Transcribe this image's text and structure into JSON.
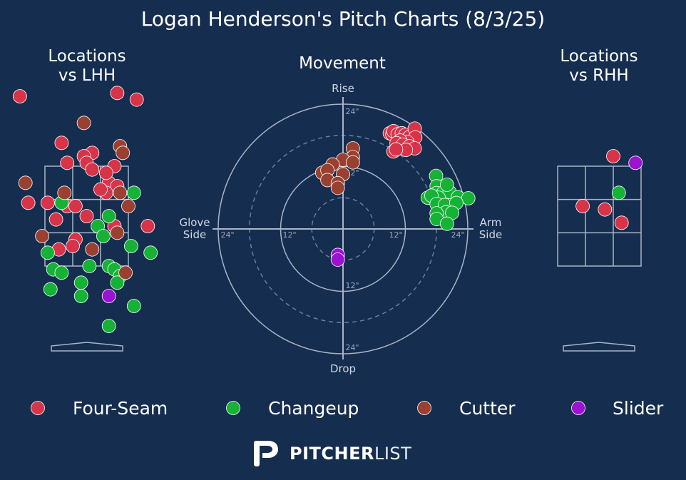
{
  "title": "Logan Henderson's Pitch Charts (8/3/25)",
  "panels": {
    "lhh": [
      "Locations",
      "vs LHH"
    ],
    "movement": "Movement",
    "rhh": [
      "Locations",
      "vs RHH"
    ]
  },
  "movement_labels": {
    "top": "Rise",
    "bottom": "Drop",
    "left": [
      "Glove",
      "Side"
    ],
    "right": [
      "Arm",
      "Side"
    ]
  },
  "ring_labels": [
    "24\"",
    "12\""
  ],
  "legend": [
    {
      "name": "Four-Seam",
      "color": "#d7344a"
    },
    {
      "name": "Changeup",
      "color": "#16b236"
    },
    {
      "name": "Cutter",
      "color": "#9a4030"
    },
    {
      "name": "Slider",
      "color": "#9a12d2"
    }
  ],
  "brand": {
    "bold": "PITCHER",
    "light": "LIST"
  },
  "chart_data": [
    {
      "type": "scatter",
      "title": "Locations vs LHH",
      "units": "strike-zone grid (x: 0-3 inside zone width, y: 0-3 inside zone height)",
      "series": [
        {
          "name": "Four-Seam",
          "points": [
            [
              -0.9,
              5.1
            ],
            [
              2.6,
              5.2
            ],
            [
              3.3,
              5.0
            ],
            [
              1.7,
              3.4
            ],
            [
              0.6,
              3.7
            ],
            [
              0.8,
              3.1
            ],
            [
              1.4,
              3.3
            ],
            [
              1.5,
              3.1
            ],
            [
              1.7,
              2.9
            ],
            [
              2.5,
              3.0
            ],
            [
              2.3,
              2.5
            ],
            [
              2.6,
              2.4
            ],
            [
              2.2,
              2.2
            ],
            [
              2.0,
              2.3
            ],
            [
              2.2,
              2.8
            ],
            [
              -0.6,
              1.9
            ],
            [
              0.1,
              1.9
            ],
            [
              0.8,
              1.8
            ],
            [
              1.1,
              1.8
            ],
            [
              1.5,
              1.5
            ],
            [
              0.4,
              1.4
            ],
            [
              2.5,
              1.2
            ],
            [
              3.7,
              1.2
            ],
            [
              1.1,
              0.8
            ],
            [
              0.5,
              0.5
            ],
            [
              1.0,
              0.6
            ]
          ]
        },
        {
          "name": "Changeup",
          "points": [
            [
              3.2,
              2.2
            ],
            [
              0.6,
              1.9
            ],
            [
              2.3,
              1.5
            ],
            [
              1.9,
              1.2
            ],
            [
              2.1,
              0.9
            ],
            [
              3.1,
              0.6
            ],
            [
              3.8,
              0.4
            ],
            [
              0.1,
              0.4
            ],
            [
              1.6,
              0.0
            ],
            [
              2.3,
              0.0
            ],
            [
              2.5,
              -0.1
            ],
            [
              2.7,
              -0.3
            ],
            [
              0.3,
              -0.1
            ],
            [
              0.6,
              -0.2
            ],
            [
              1.3,
              -0.5
            ],
            [
              2.6,
              -0.5
            ],
            [
              0.2,
              -0.7
            ],
            [
              1.3,
              -0.9
            ],
            [
              3.2,
              -1.2
            ],
            [
              2.3,
              -1.8
            ]
          ]
        },
        {
          "name": "Cutter",
          "points": [
            [
              1.4,
              4.3
            ],
            [
              2.7,
              3.6
            ],
            [
              2.8,
              3.4
            ],
            [
              -0.7,
              2.5
            ],
            [
              0.7,
              2.2
            ],
            [
              2.7,
              2.2
            ],
            [
              3.0,
              1.8
            ],
            [
              -0.1,
              0.9
            ],
            [
              2.6,
              1.0
            ],
            [
              1.7,
              0.5
            ],
            [
              2.9,
              -0.2
            ]
          ]
        },
        {
          "name": "Slider",
          "points": [
            [
              2.3,
              -0.9
            ]
          ]
        }
      ]
    },
    {
      "type": "scatter",
      "title": "Movement",
      "units": "inches (horizontal break, induced vertical break)",
      "xlim": [
        -24,
        24
      ],
      "ylim": [
        -24,
        24
      ],
      "series": [
        {
          "name": "Four-Seam",
          "points": [
            [
              9.0,
              18.4
            ],
            [
              9.5,
              18.2
            ],
            [
              9.7,
              18.8
            ],
            [
              10.5,
              18.2
            ],
            [
              11.3,
              18.4
            ],
            [
              12.0,
              18.1
            ],
            [
              12.8,
              17.7
            ],
            [
              13.8,
              19.3
            ],
            [
              13.9,
              17.6
            ],
            [
              12.4,
              16.7
            ],
            [
              11.0,
              17.0
            ],
            [
              10.3,
              16.5
            ],
            [
              11.5,
              16.2
            ],
            [
              12.8,
              15.9
            ],
            [
              13.8,
              15.5
            ],
            [
              12.1,
              15.2
            ],
            [
              9.7,
              14.9
            ],
            [
              10.2,
              15.3
            ]
          ]
        },
        {
          "name": "Changeup",
          "points": [
            [
              17.9,
              10.2
            ],
            [
              18.0,
              8.2
            ],
            [
              18.0,
              6.9
            ],
            [
              18.8,
              6.0
            ],
            [
              19.3,
              7.0
            ],
            [
              20.5,
              7.1
            ],
            [
              20.0,
              8.5
            ],
            [
              16.3,
              6.0
            ],
            [
              18.4,
              6.0
            ],
            [
              17.0,
              6.4
            ],
            [
              22.1,
              6.1
            ],
            [
              24.1,
              5.9
            ],
            [
              18.0,
              4.8
            ],
            [
              19.6,
              4.6
            ],
            [
              21.8,
              5.0
            ],
            [
              19.8,
              3.2
            ],
            [
              21.0,
              3.1
            ],
            [
              18.0,
              3.0
            ],
            [
              18.0,
              1.9
            ],
            [
              20.0,
              1.0
            ]
          ]
        },
        {
          "name": "Cutter",
          "points": [
            [
              1.9,
              15.5
            ],
            [
              1.9,
              13.8
            ],
            [
              0.0,
              13.3
            ],
            [
              1.9,
              12.8
            ],
            [
              -2.0,
              12.4
            ],
            [
              -4.0,
              10.8
            ],
            [
              -3.0,
              11.3
            ],
            [
              0.0,
              10.5
            ],
            [
              -3.0,
              9.4
            ],
            [
              -1.0,
              8.8
            ],
            [
              -1.0,
              7.9
            ]
          ]
        },
        {
          "name": "Slider",
          "points": [
            [
              -1.0,
              -5.0
            ],
            [
              -1.0,
              -5.9
            ]
          ]
        }
      ]
    },
    {
      "type": "scatter",
      "title": "Locations vs RHH",
      "units": "strike-zone grid (x: 0-3 inside zone width, y: 0-3 inside zone height)",
      "series": [
        {
          "name": "Four-Seam",
          "points": [
            [
              2.0,
              3.3
            ],
            [
              0.9,
              1.8
            ],
            [
              1.7,
              1.7
            ],
            [
              2.3,
              1.3
            ]
          ]
        },
        {
          "name": "Changeup",
          "points": [
            [
              2.2,
              2.2
            ]
          ]
        },
        {
          "name": "Slider",
          "points": [
            [
              2.8,
              3.1
            ]
          ]
        }
      ]
    }
  ]
}
